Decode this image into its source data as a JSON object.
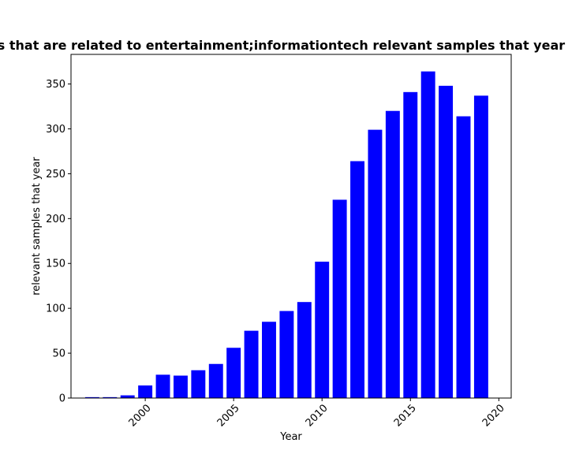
{
  "chart_data": {
    "type": "bar",
    "title": "Fraction of papers that are related to entertainment;informationtech relevant samples that year in privacy research",
    "xlabel": "Year",
    "ylabel": "relevant samples that year",
    "x": [
      1997,
      1998,
      1999,
      2000,
      2001,
      2002,
      2003,
      2004,
      2005,
      2006,
      2007,
      2008,
      2009,
      2010,
      2011,
      2012,
      2013,
      2014,
      2015,
      2016,
      2017,
      2018,
      2019
    ],
    "values": [
      1,
      1,
      3,
      14,
      26,
      25,
      31,
      38,
      56,
      75,
      85,
      97,
      107,
      152,
      221,
      264,
      299,
      320,
      341,
      364,
      348,
      314,
      337
    ],
    "xlim": [
      1995.8,
      2020.7
    ],
    "ylim": [
      0,
      383
    ],
    "xticks": [
      2000,
      2005,
      2010,
      2015,
      2020
    ],
    "yticks": [
      0,
      50,
      100,
      150,
      200,
      250,
      300,
      350
    ],
    "bar_color": "#0000ff",
    "grid": false,
    "legend": "none"
  }
}
